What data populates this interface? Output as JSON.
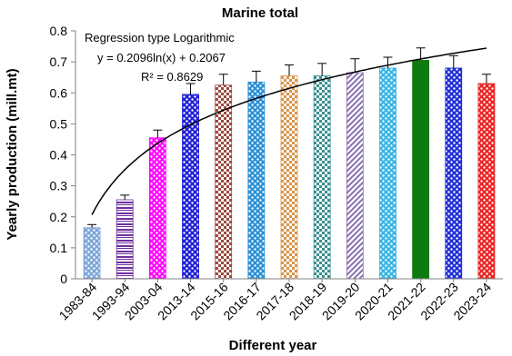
{
  "chart_data": {
    "type": "bar",
    "title": "Marine total",
    "xlabel": "Different year",
    "ylabel": "Yearly production (mill.mt)",
    "ylim": [
      0,
      0.8
    ],
    "yticks": [
      "0",
      "0.1",
      "0.2",
      "0.3",
      "0.4",
      "0.5",
      "0.6",
      "0.7",
      "0.8"
    ],
    "categories": [
      "1983-84",
      "1993-94",
      "2003-04",
      "2013-14",
      "2015-16",
      "2016-17",
      "2017-18",
      "2018-19",
      "2019-20",
      "2020-21",
      "2021-22",
      "2022-23",
      "2023-24"
    ],
    "values": [
      0.165,
      0.255,
      0.455,
      0.595,
      0.625,
      0.635,
      0.655,
      0.655,
      0.665,
      0.68,
      0.705,
      0.68,
      0.63
    ],
    "errors": [
      0.01,
      0.015,
      0.025,
      0.035,
      0.035,
      0.035,
      0.035,
      0.04,
      0.045,
      0.035,
      0.04,
      0.04,
      0.03
    ],
    "bar_colors": [
      "#7ea6d8",
      "#7030a0",
      "#ff00ff",
      "#1f1fd6",
      "#9c4a3c",
      "#2a8fd6",
      "#d9954a",
      "#3a8f8f",
      "#8870b0",
      "#35b5e5",
      "#0f7a0f",
      "#1f2fd6",
      "#ee2222"
    ],
    "grid": false,
    "legend": "none",
    "annotations": {
      "regression_type": "Regression type Logarithmic",
      "equation": "y = 0.2096ln(x) + 0.2067",
      "r_squared": "R² = 0.8629"
    },
    "trendline": {
      "type": "logarithmic",
      "a": 0.2096,
      "b": 0.2067
    }
  }
}
